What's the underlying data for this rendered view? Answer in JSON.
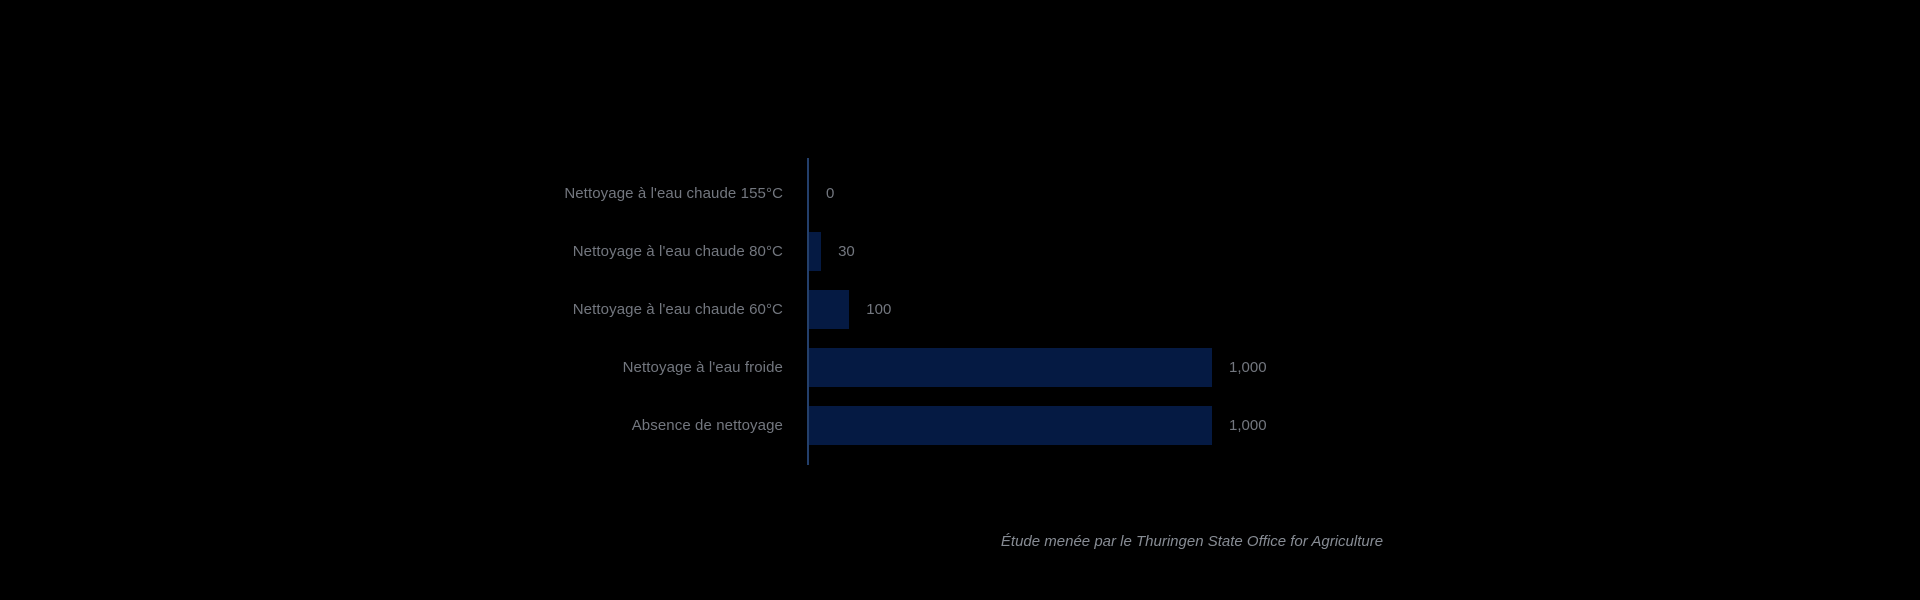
{
  "chart_data": {
    "type": "bar",
    "orientation": "horizontal",
    "categories": [
      "Nettoyage à l'eau chaude 155°C",
      "Nettoyage à l'eau chaude 80°C",
      "Nettoyage à l'eau chaude 60°C",
      "Nettoyage à l'eau froide",
      "Absence de nettoyage"
    ],
    "values": [
      0,
      30,
      100,
      1000,
      1000
    ],
    "value_labels": [
      "0",
      "30",
      "100",
      "1,000",
      "1,000"
    ],
    "caption": "Étude menée par le Thuringen State Office for Agriculture",
    "layout_hints": {
      "grid": false,
      "x_axis_visible": false,
      "y_axis_line_visible": true,
      "value_labels_position": "right-of-bar",
      "category_labels_position": "left-of-axis"
    },
    "colors": {
      "background": "#000000",
      "bar": "#051A43",
      "axis_line": "#233F6B",
      "category_text": "#73777F",
      "value_text": "#73777F",
      "caption_text": "#878C94"
    }
  }
}
